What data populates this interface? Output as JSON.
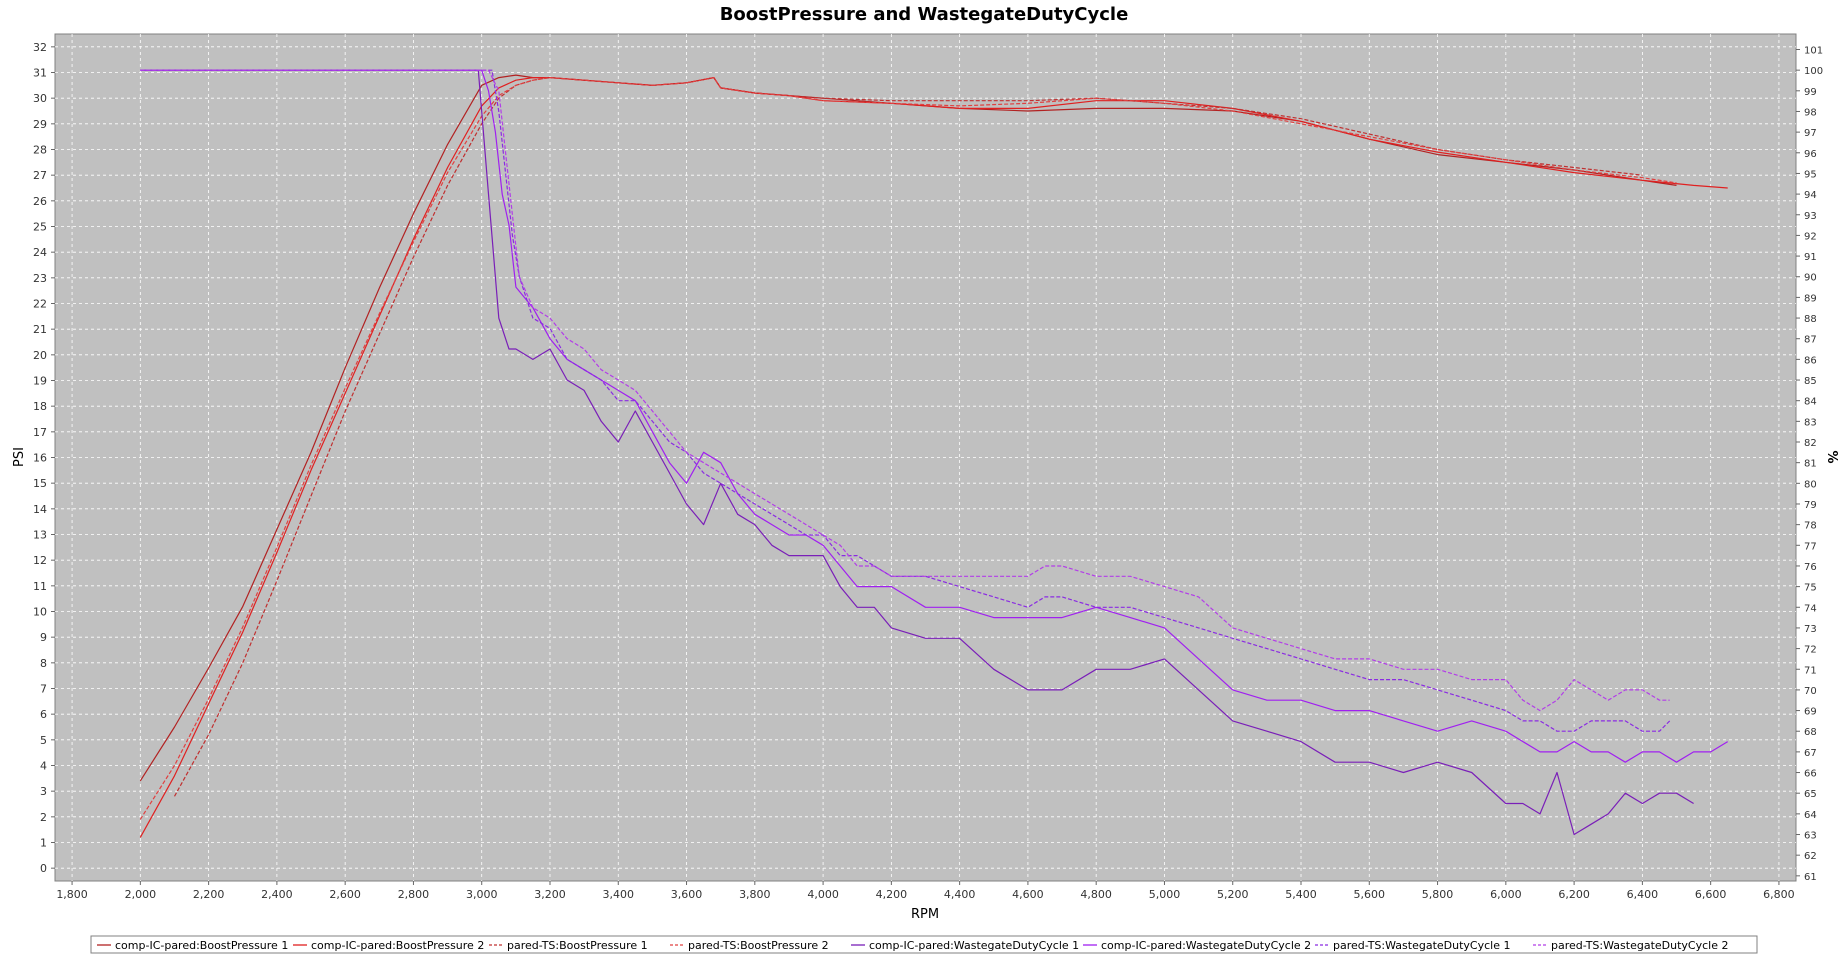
{
  "chart_data": {
    "type": "line",
    "title": "BoostPressure and WastegateDutyCycle",
    "xlabel": "RPM",
    "ylabel_left": "PSI",
    "ylabel_right": "%",
    "xlim": [
      1750,
      6850
    ],
    "ylim_left": [
      -0.5,
      32.5
    ],
    "ylim_right": [
      60.75,
      101.75
    ],
    "x_ticks": [
      "1,800",
      "2,000",
      "2,200",
      "2,400",
      "2,600",
      "2,800",
      "3,000",
      "3,200",
      "3,400",
      "3,600",
      "3,800",
      "4,000",
      "4,200",
      "4,400",
      "4,600",
      "4,800",
      "5,000",
      "5,200",
      "5,400",
      "5,600",
      "5,800",
      "6,000",
      "6,200",
      "6,400",
      "6,600",
      "6,800"
    ],
    "x_tick_values": [
      1800,
      2000,
      2200,
      2400,
      2600,
      2800,
      3000,
      3200,
      3400,
      3600,
      3800,
      4000,
      4200,
      4400,
      4600,
      4800,
      5000,
      5200,
      5400,
      5600,
      5800,
      6000,
      6200,
      6400,
      6600,
      6800
    ],
    "y_left_ticks": [
      "0",
      "1",
      "2",
      "3",
      "4",
      "5",
      "6",
      "7",
      "8",
      "9",
      "10",
      "11",
      "12",
      "13",
      "14",
      "15",
      "16",
      "17",
      "18",
      "19",
      "20",
      "21",
      "22",
      "23",
      "24",
      "25",
      "26",
      "27",
      "28",
      "29",
      "30",
      "31",
      "32"
    ],
    "y_right_ticks": [
      "61",
      "62",
      "63",
      "64",
      "65",
      "66",
      "67",
      "68",
      "69",
      "70",
      "71",
      "72",
      "73",
      "74",
      "75",
      "76",
      "77",
      "78",
      "79",
      "80",
      "81",
      "82",
      "83",
      "84",
      "85",
      "86",
      "87",
      "88",
      "89",
      "90",
      "91",
      "92",
      "93",
      "94",
      "95",
      "96",
      "97",
      "98",
      "99",
      "100",
      "101"
    ],
    "grid": true,
    "legend_position": "bottom",
    "series": [
      {
        "name": "comp-IC-pared:BoostPressure 1",
        "axis": "left",
        "color": "#b22222",
        "dash": false,
        "x": [
          2000,
          2100,
          2200,
          2300,
          2400,
          2500,
          2600,
          2700,
          2800,
          2900,
          3000,
          3050,
          3100,
          3150,
          3200,
          3300,
          3400,
          3500,
          3600,
          3680,
          3700,
          3800,
          3900,
          4000,
          4200,
          4400,
          4600,
          4800,
          5000,
          5200,
          5400,
          5600,
          5800,
          6000,
          6200,
          6400,
          6500
        ],
        "y": [
          3.4,
          5.5,
          7.8,
          10.2,
          13.2,
          16.2,
          19.5,
          22.6,
          25.5,
          28.2,
          30.5,
          30.8,
          30.9,
          30.8,
          30.8,
          30.7,
          30.6,
          30.5,
          30.6,
          30.8,
          30.4,
          30.2,
          30.1,
          30.0,
          29.8,
          29.6,
          29.5,
          29.6,
          29.6,
          29.5,
          29.1,
          28.4,
          27.8,
          27.5,
          27.2,
          26.8,
          26.6
        ]
      },
      {
        "name": "comp-IC-pared:BoostPressure 2",
        "axis": "left",
        "color": "#e02020",
        "dash": false,
        "x": [
          2000,
          2100,
          2200,
          2300,
          2400,
          2500,
          2600,
          2700,
          2800,
          2900,
          3000,
          3050,
          3100,
          3150,
          3200,
          3300,
          3400,
          3500,
          3600,
          3680,
          3700,
          3800,
          3900,
          4000,
          4200,
          4400,
          4600,
          4800,
          5000,
          5200,
          5400,
          5600,
          5800,
          6000,
          6200,
          6400,
          6550,
          6650
        ],
        "y": [
          1.2,
          3.6,
          6.4,
          9.2,
          12.3,
          15.5,
          18.5,
          21.5,
          24.5,
          27.3,
          29.7,
          30.4,
          30.7,
          30.8,
          30.8,
          30.7,
          30.6,
          30.5,
          30.6,
          30.8,
          30.4,
          30.2,
          30.1,
          29.9,
          29.8,
          29.6,
          29.6,
          29.9,
          29.9,
          29.6,
          29.1,
          28.4,
          27.9,
          27.5,
          27.1,
          26.8,
          26.6,
          26.5
        ]
      },
      {
        "name": "pared-TS:BoostPressure 1",
        "axis": "left",
        "color": "#c03030",
        "dash": true,
        "x": [
          2100,
          2200,
          2300,
          2400,
          2500,
          2600,
          2700,
          2800,
          2900,
          3000,
          3050,
          3100,
          3150,
          3200,
          3300,
          3400,
          3500,
          3600,
          3680,
          3700,
          3800,
          3900,
          4000,
          4200,
          4400,
          4600,
          4800,
          5000,
          5200,
          5400,
          5600,
          5800,
          6000,
          6200,
          6400
        ],
        "y": [
          2.8,
          5.2,
          8.0,
          11.2,
          14.5,
          17.8,
          20.8,
          23.8,
          26.6,
          29.0,
          30.0,
          30.5,
          30.7,
          30.8,
          30.7,
          30.6,
          30.5,
          30.6,
          30.8,
          30.4,
          30.2,
          30.1,
          30.0,
          29.9,
          29.9,
          29.9,
          30.0,
          29.8,
          29.6,
          29.2,
          28.6,
          28.0,
          27.6,
          27.3,
          27.0
        ]
      },
      {
        "name": "pared-TS:BoostPressure 2",
        "axis": "left",
        "color": "#e04040",
        "dash": true,
        "x": [
          2000,
          2100,
          2200,
          2300,
          2400,
          2500,
          2600,
          2700,
          2800,
          2900,
          3000,
          3050,
          3100,
          3150,
          3200,
          3300,
          3400,
          3500,
          3600,
          3680,
          3700,
          3800,
          3900,
          4000,
          4200,
          4400,
          4600,
          4800,
          5000,
          5200,
          5400,
          5600,
          5800,
          6000,
          6200,
          6400,
          6500
        ],
        "y": [
          1.9,
          4.0,
          6.6,
          9.4,
          12.5,
          15.7,
          18.7,
          21.6,
          24.4,
          27.1,
          29.3,
          30.1,
          30.5,
          30.7,
          30.8,
          30.7,
          30.6,
          30.5,
          30.6,
          30.8,
          30.4,
          30.2,
          30.1,
          29.9,
          29.8,
          29.7,
          29.8,
          30.0,
          29.8,
          29.5,
          29.0,
          28.5,
          28.0,
          27.6,
          27.2,
          26.9,
          26.7
        ]
      },
      {
        "name": "comp-IC-pared:WastegateDutyCycle 1",
        "axis": "right",
        "color": "#7a1fb8",
        "dash": false,
        "x": [
          2000,
          2900,
          2990,
          3000,
          3020,
          3050,
          3080,
          3100,
          3150,
          3200,
          3250,
          3300,
          3350,
          3400,
          3450,
          3500,
          3550,
          3600,
          3650,
          3700,
          3750,
          3800,
          3850,
          3900,
          3950,
          4000,
          4050,
          4100,
          4150,
          4200,
          4300,
          4400,
          4500,
          4600,
          4700,
          4800,
          4900,
          5000,
          5100,
          5200,
          5300,
          5400,
          5500,
          5600,
          5700,
          5800,
          5900,
          6000,
          6050,
          6100,
          6150,
          6200,
          6250,
          6300,
          6350,
          6400,
          6450,
          6500,
          6550
        ],
        "y": [
          100,
          100,
          100,
          98,
          94,
          88,
          86.5,
          86.5,
          86,
          86.5,
          85,
          84.5,
          83,
          82,
          83.5,
          82,
          80.5,
          79,
          78,
          80,
          78.5,
          78,
          77,
          76.5,
          76.5,
          76.5,
          75,
          74,
          74,
          73,
          72.5,
          72.5,
          71,
          70,
          70,
          71,
          71,
          71.5,
          70,
          68.5,
          68,
          67.5,
          66.5,
          66.5,
          66,
          66.5,
          66,
          64.5,
          64.5,
          64,
          66,
          63,
          63.5,
          64,
          65,
          64.5,
          65,
          65,
          64.5
        ]
      },
      {
        "name": "comp-IC-pared:WastegateDutyCycle 2",
        "axis": "right",
        "color": "#a020f0",
        "dash": false,
        "x": [
          2000,
          2950,
          3000,
          3020,
          3040,
          3060,
          3080,
          3100,
          3150,
          3200,
          3250,
          3300,
          3350,
          3400,
          3450,
          3500,
          3550,
          3600,
          3650,
          3700,
          3750,
          3800,
          3850,
          3900,
          3950,
          4000,
          4050,
          4100,
          4150,
          4200,
          4300,
          4400,
          4500,
          4600,
          4700,
          4800,
          4900,
          5000,
          5100,
          5200,
          5300,
          5400,
          5500,
          5600,
          5700,
          5800,
          5900,
          6000,
          6050,
          6100,
          6150,
          6200,
          6250,
          6300,
          6350,
          6400,
          6450,
          6500,
          6550,
          6600,
          6650
        ],
        "y": [
          100,
          100,
          100,
          99,
          97,
          94,
          92.5,
          89.5,
          88.5,
          87,
          86,
          85.5,
          85,
          84.5,
          84,
          82.5,
          81,
          80,
          81.5,
          81,
          79.5,
          78.5,
          78,
          77.5,
          77.5,
          77,
          76,
          75,
          75,
          75,
          74,
          74,
          73.5,
          73.5,
          73.5,
          74,
          73.5,
          73,
          71.5,
          70,
          69.5,
          69.5,
          69,
          69,
          68.5,
          68,
          68.5,
          68,
          67.5,
          67,
          67,
          67.5,
          67,
          67,
          66.5,
          67,
          67,
          66.5,
          67,
          67,
          67.5
        ]
      },
      {
        "name": "pared-TS:WastegateDutyCycle 1",
        "axis": "right",
        "color": "#8a2be2",
        "dash": true,
        "x": [
          2000,
          3000,
          3030,
          3050,
          3070,
          3090,
          3110,
          3150,
          3200,
          3250,
          3300,
          3350,
          3400,
          3450,
          3500,
          3550,
          3600,
          3650,
          3700,
          3750,
          3800,
          3850,
          3900,
          3950,
          4000,
          4050,
          4100,
          4150,
          4200,
          4300,
          4400,
          4500,
          4600,
          4650,
          4700,
          4800,
          4900,
          5000,
          5100,
          5200,
          5300,
          5400,
          5500,
          5600,
          5700,
          5800,
          5900,
          6000,
          6050,
          6100,
          6150,
          6200,
          6250,
          6300,
          6350,
          6400,
          6450,
          6480
        ],
        "y": [
          100,
          100,
          100,
          98,
          95,
          92,
          90,
          88,
          87.5,
          86,
          85.5,
          85,
          84,
          84,
          83,
          82,
          81.5,
          80.5,
          80,
          79.5,
          79,
          78.5,
          78,
          77.5,
          77.5,
          76.5,
          76.5,
          76,
          75.5,
          75.5,
          75,
          74.5,
          74,
          74.5,
          74.5,
          74,
          74,
          73.5,
          73,
          72.5,
          72,
          71.5,
          71,
          70.5,
          70.5,
          70,
          69.5,
          69,
          68.5,
          68.5,
          68,
          68,
          68.5,
          68.5,
          68.5,
          68,
          68,
          68.5
        ]
      },
      {
        "name": "pared-TS:WastegateDutyCycle 2",
        "axis": "right",
        "color": "#b23ee8",
        "dash": true,
        "x": [
          2000,
          3020,
          3050,
          3070,
          3090,
          3110,
          3150,
          3200,
          3250,
          3300,
          3350,
          3400,
          3450,
          3500,
          3550,
          3600,
          3650,
          3700,
          3750,
          3800,
          3850,
          3900,
          3950,
          4000,
          4050,
          4100,
          4150,
          4200,
          4300,
          4400,
          4500,
          4600,
          4650,
          4700,
          4800,
          4900,
          5000,
          5100,
          5200,
          5300,
          5400,
          5500,
          5600,
          5700,
          5800,
          5900,
          6000,
          6050,
          6100,
          6150,
          6200,
          6250,
          6300,
          6350,
          6400,
          6450,
          6480
        ],
        "y": [
          100,
          100,
          99,
          96,
          93,
          90,
          88.5,
          88,
          87,
          86.5,
          85.5,
          85,
          84.5,
          83.5,
          82.5,
          81.5,
          81,
          80.5,
          80,
          79.5,
          79,
          78.5,
          78,
          77.5,
          77,
          76,
          76,
          75.5,
          75.5,
          75.5,
          75.5,
          75.5,
          76,
          76,
          75.5,
          75.5,
          75,
          74.5,
          73,
          72.5,
          72,
          71.5,
          71.5,
          71,
          71,
          70.5,
          70.5,
          69.5,
          69,
          69.5,
          70.5,
          70,
          69.5,
          70,
          70,
          69.5,
          69.5
        ]
      }
    ]
  }
}
